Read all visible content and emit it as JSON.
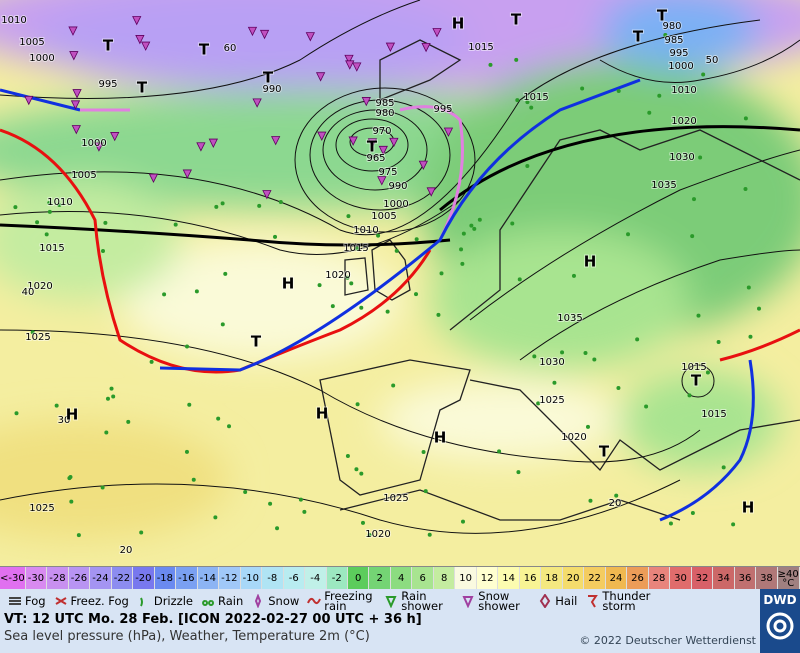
{
  "map": {
    "isobar_labels": [
      "1010",
      "1005",
      "1000",
      "995",
      "1000",
      "1005",
      "1010",
      "1015",
      "1020",
      "1025",
      "1025",
      "1020",
      "1025",
      "1030",
      "1035",
      "1025",
      "1020",
      "1015",
      "1015",
      "1035",
      "1030",
      "1020",
      "1010",
      "1000",
      "995",
      "985",
      "980",
      "1015",
      "1015",
      "995",
      "985",
      "980",
      "970",
      "965",
      "975",
      "990",
      "1000",
      "1005",
      "1010",
      "1015",
      "1020",
      "990",
      "30",
      "20",
      "40",
      "50",
      "60",
      "20"
    ],
    "pressure_centers": [
      "H",
      "H",
      "H",
      "H",
      "H",
      "H",
      "H",
      "T",
      "T",
      "T",
      "T",
      "T",
      "T",
      "T",
      "T",
      "T",
      "T",
      "T"
    ]
  },
  "color_scale": {
    "labels": [
      "<-30",
      "-30",
      "-28",
      "-26",
      "-24",
      "-22",
      "-20",
      "-18",
      "-16",
      "-14",
      "-12",
      "-10",
      "-8",
      "-6",
      "-4",
      "-2",
      "0",
      "2",
      "4",
      "6",
      "8",
      "10",
      "12",
      "14",
      "16",
      "18",
      "20",
      "22",
      "24",
      "26",
      "28",
      "30",
      "32",
      "34",
      "36",
      "38",
      "≥40 °C"
    ],
    "colors": [
      "#e070f0",
      "#d88af0",
      "#c890f0",
      "#b894f2",
      "#a494f2",
      "#8c8cf0",
      "#7878ee",
      "#6a8af0",
      "#7aa0f2",
      "#8cb4f4",
      "#a0c8f8",
      "#a8d8f8",
      "#b0e4f4",
      "#b8ecf0",
      "#c0f0e8",
      "#9ce8c0",
      "#5ccc5c",
      "#74d474",
      "#8cdc80",
      "#a8e490",
      "#c4eca0",
      "#fafae0",
      "#ffffd0",
      "#fcfcb0",
      "#f8f494",
      "#f4e880",
      "#f4dc6c",
      "#f4cc60",
      "#f0b850",
      "#ec9c58",
      "#e8847c",
      "#e06c6c",
      "#d86068",
      "#cc6868",
      "#c07070",
      "#b07878",
      "#a08080"
    ]
  },
  "weather_legend": [
    "Fog",
    "Freez. Fog",
    "Drizzle",
    "Rain",
    "Snow",
    "Freezing rain",
    "Rain shower",
    "Snow shower",
    "Hail",
    "Thunder storm"
  ],
  "footer": {
    "valid_time": "VT: 12 UTC Mo.  28 Feb. [ICON 2022-02-27  00 UTC + 36 h]",
    "subtitle": "Sea level pressure (hPa), Weather, Temperature 2m (°C)",
    "copyright": "© 2022 Deutscher Wetterdienst",
    "logo": "DWD"
  }
}
